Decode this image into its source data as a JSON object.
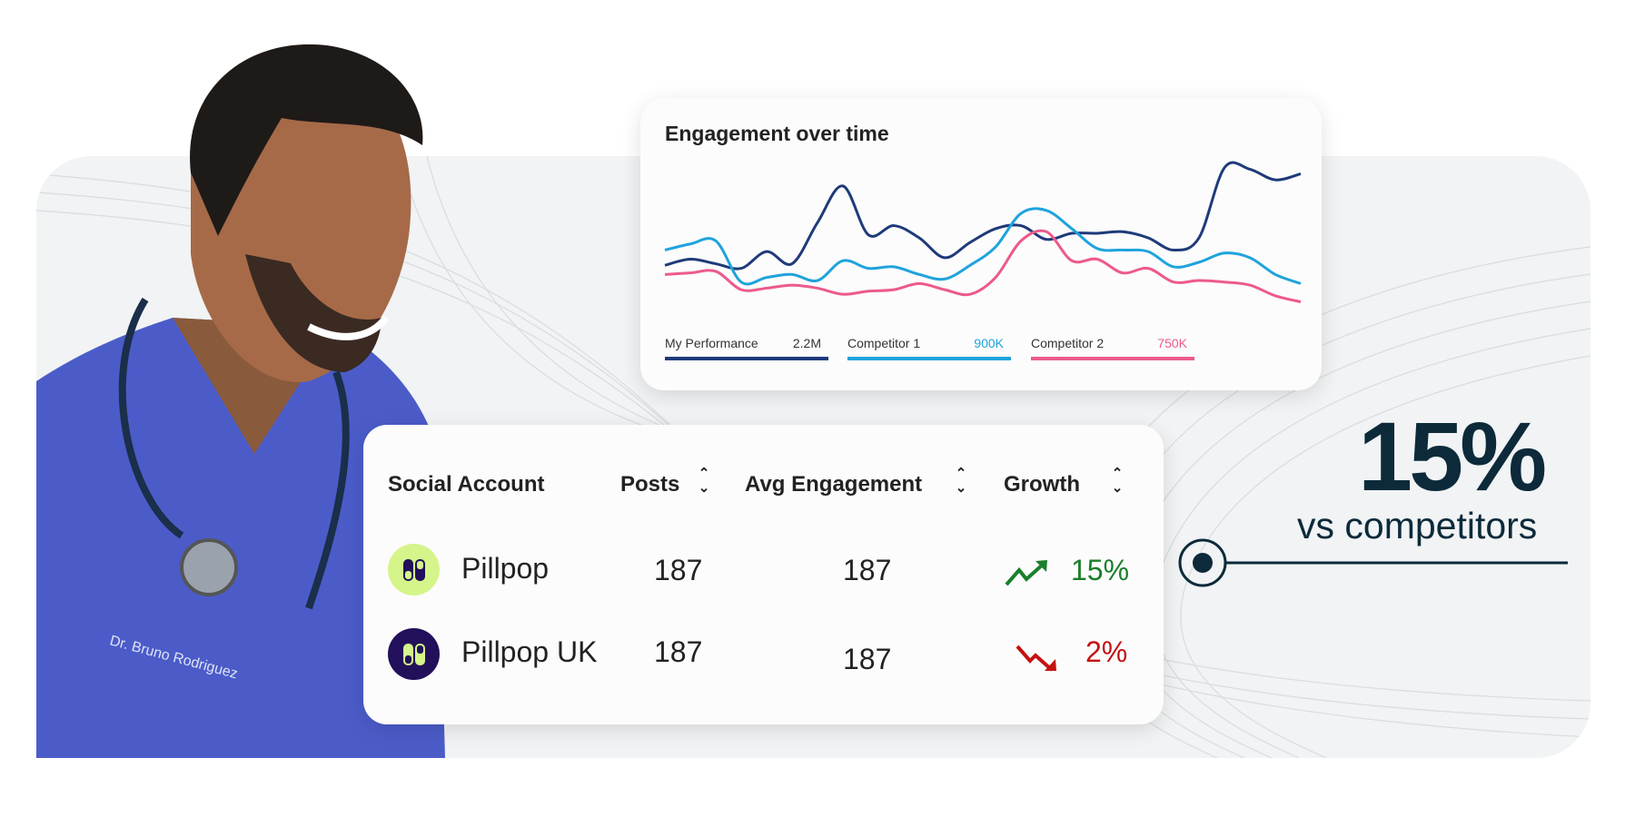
{
  "chart_card": {
    "title": "Engagement over time",
    "legend": [
      {
        "label": "My Performance",
        "value": "2.2M",
        "color": "#1f3a7a"
      },
      {
        "label": "Competitor 1",
        "value": "900K",
        "color": "#1fa3dc"
      },
      {
        "label": "Competitor 2",
        "value": "750K",
        "color": "#ec5a8b"
      }
    ]
  },
  "chart_data": {
    "type": "line",
    "title": "Engagement over time",
    "xlabel": "",
    "ylabel": "",
    "ylim": [
      0,
      100
    ],
    "grid": false,
    "legend_placement": "bottom",
    "x": [
      0,
      1,
      2,
      3,
      4,
      5,
      6,
      7,
      8,
      9,
      10,
      11,
      12,
      13,
      14,
      15,
      16,
      17,
      18,
      19,
      20,
      21,
      22,
      23,
      24,
      25
    ],
    "series": [
      {
        "name": "My Performance",
        "color": "#1f3a7a",
        "values": [
          32,
          36,
          33,
          30,
          41,
          33,
          60,
          84,
          52,
          58,
          50,
          37,
          47,
          56,
          58,
          49,
          53,
          53,
          54,
          50,
          42,
          50,
          96,
          95,
          88,
          92
        ]
      },
      {
        "name": "Competitor 1",
        "color": "#1fa3dc",
        "values": [
          42,
          46,
          48,
          21,
          24,
          26,
          22,
          35,
          30,
          31,
          26,
          23,
          32,
          44,
          66,
          68,
          56,
          43,
          42,
          41,
          31,
          34,
          40,
          37,
          26,
          20
        ]
      },
      {
        "name": "Competitor 2",
        "color": "#ec5a8b",
        "values": [
          26,
          27,
          28,
          16,
          17,
          19,
          17,
          13,
          15,
          16,
          20,
          16,
          13,
          24,
          48,
          54,
          35,
          36,
          27,
          30,
          21,
          22,
          21,
          19,
          12,
          8
        ]
      }
    ]
  },
  "table": {
    "headers": [
      "Social Account",
      "Posts",
      "Avg Engagement",
      "Growth"
    ],
    "sort_icon": "sort-up-down-icon",
    "rows": [
      {
        "account": "Pillpop",
        "posts": "187",
        "avg_engagement": "187",
        "growth": "15%",
        "trend": "up",
        "trend_color": "#1a7f2a",
        "avatar_bg": "#d5f58a",
        "avatar_icon": "pill-icon"
      },
      {
        "account": "Pillpop UK",
        "posts": "187",
        "avg_engagement": "187",
        "growth": "2%",
        "trend": "down",
        "trend_color": "#c41212",
        "avatar_bg": "#22105a",
        "avatar_icon": "pill-icon"
      }
    ]
  },
  "highlight": {
    "value": "15%",
    "label": "vs competitors",
    "color": "#0c2a3a"
  }
}
